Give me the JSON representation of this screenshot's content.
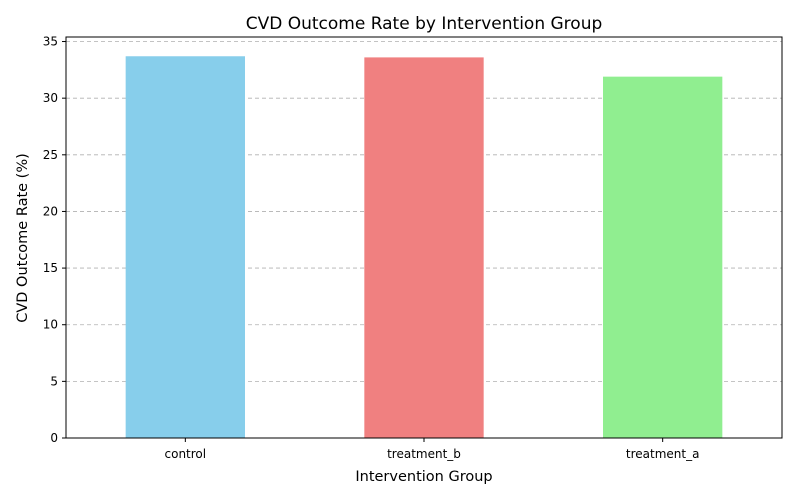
{
  "chart_data": {
    "type": "bar",
    "title": "CVD Outcome Rate by Intervention Group",
    "xlabel": "Intervention Group",
    "ylabel": "CVD Outcome Rate (%)",
    "categories": [
      "control",
      "treatment_b",
      "treatment_a"
    ],
    "values": [
      33.7,
      33.6,
      31.9
    ],
    "colors": [
      "#87ceeb",
      "#f08080",
      "#90ee90"
    ],
    "ylim": [
      0,
      35.4
    ],
    "yticks": [
      0,
      5,
      10,
      15,
      20,
      25,
      30,
      35
    ],
    "grid": "y-dashed",
    "legend": "none"
  }
}
